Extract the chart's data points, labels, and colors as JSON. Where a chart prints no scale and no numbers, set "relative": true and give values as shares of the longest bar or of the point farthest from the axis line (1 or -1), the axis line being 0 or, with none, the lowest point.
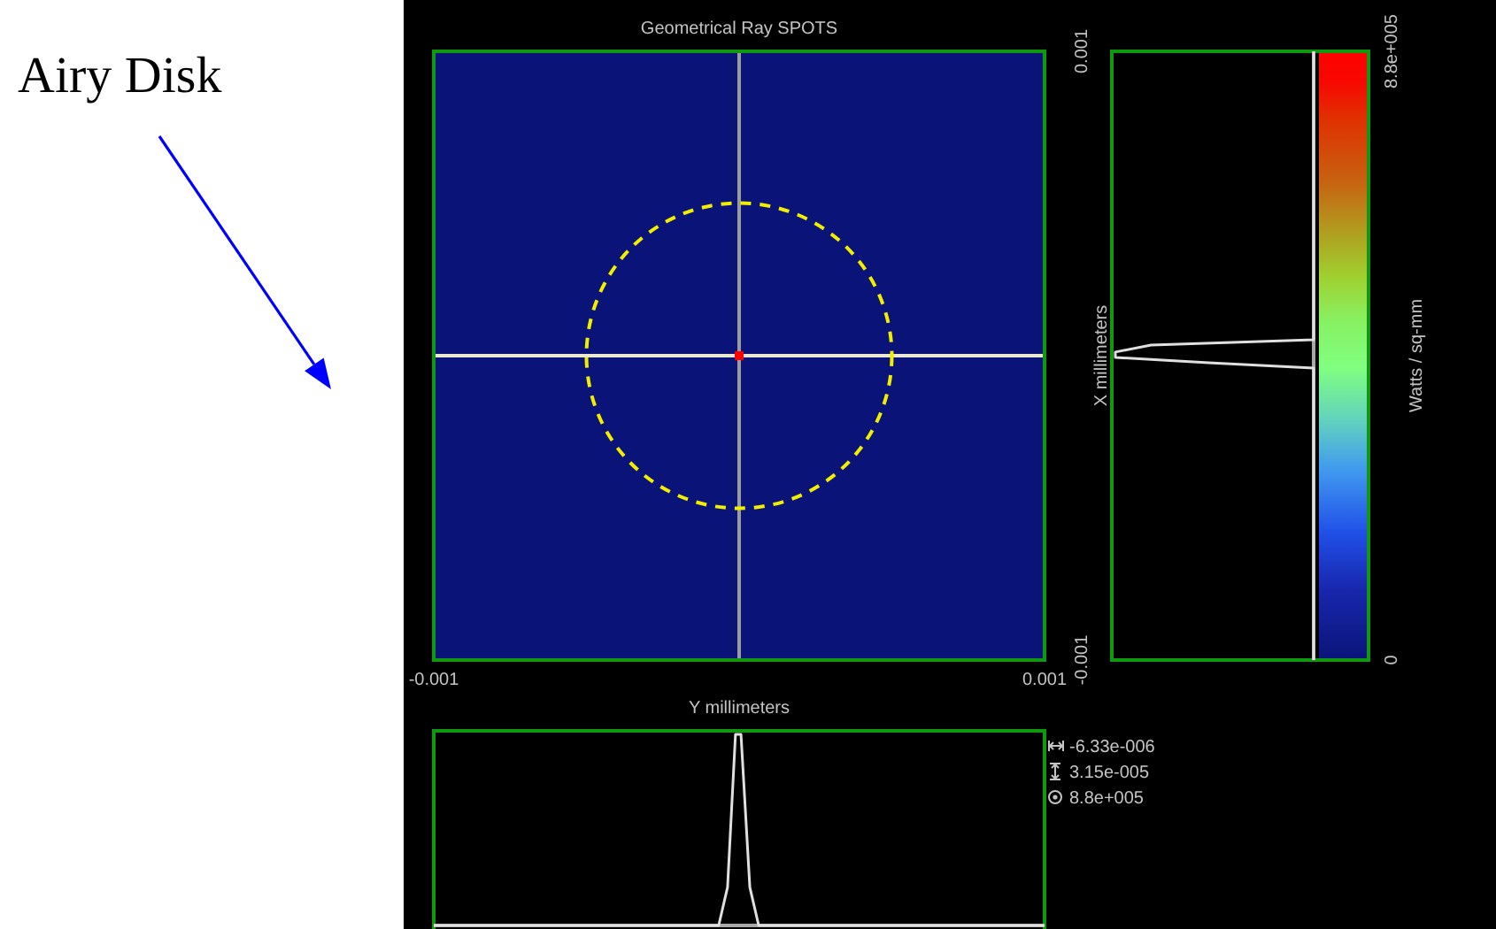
{
  "chart_data": [
    {
      "type": "scatter",
      "title": "Geometrical Ray SPOTS",
      "xlabel": "Y millimeters",
      "ylabel": "X millimeters",
      "clabel": "Watts / sq-mm",
      "xlim": [
        -0.001,
        0.001
      ],
      "ylim": [
        -0.001,
        0.001
      ],
      "xticks": [
        -0.001,
        0.001
      ],
      "yticks": [
        -0.001,
        0.001
      ],
      "clim": [
        0,
        880000
      ],
      "cticks": [
        0,
        {
          "value": 880000,
          "label": "8.8e+005"
        }
      ],
      "series": [
        {
          "type": "scatter",
          "marker": "square",
          "x": [
            0
          ],
          "values": [
            0
          ],
          "cvalues": [
            880000
          ]
        }
      ],
      "ref_lines": [
        {
          "axis": "x",
          "value": 0,
          "color": "#9c9c9c"
        },
        {
          "axis": "y",
          "value": 0,
          "color": "#ebe9cf"
        }
      ],
      "annotations": [
        "Airy Disk",
        "-6.33e-006",
        "3.15e-005",
        "8.8e+005"
      ]
    },
    {
      "type": "line",
      "orientation": "horizontal",
      "relative": true,
      "tick_labels": false,
      "ylim": [
        -0.001,
        0.001
      ],
      "x": [
        0.001,
        5.2e-05,
        3.5e-05,
        1.2e-05,
        -6e-06,
        -2.3e-05,
        -4.1e-05,
        -0.001
      ],
      "series": [
        {
          "color": "#e0e0e0",
          "values": [
            0,
            0,
            -0.82,
            -1,
            -1,
            -0.53,
            0,
            0
          ]
        }
      ]
    },
    {
      "type": "line",
      "relative": true,
      "tick_labels": false,
      "xlim": [
        -0.001,
        0.001
      ],
      "x": [
        -0.001,
        -6.7e-05,
        -3.8e-05,
        -1.2e-05,
        6e-06,
        3.5e-05,
        6.4e-05,
        0.001
      ],
      "series": [
        {
          "color": "#e0e0e0",
          "values": [
            0,
            0,
            0.2,
            1,
            1,
            0.2,
            0,
            0
          ]
        }
      ]
    }
  ]
}
